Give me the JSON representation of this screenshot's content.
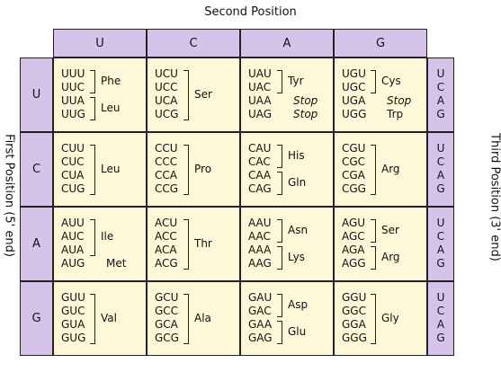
{
  "second_position_label": "Second Position",
  "first_position_label": "First Position (5' end)",
  "third_position_label": "Third Position (3' end)",
  "bases": [
    "U",
    "C",
    "A",
    "G"
  ],
  "blocks": [
    [
      {
        "codons": [
          "UUU",
          "UUC",
          "UUA",
          "UUG"
        ],
        "groups": [
          {
            "from": 0,
            "to": 1,
            "aa": "Phe"
          },
          {
            "from": 2,
            "to": 3,
            "aa": "Leu"
          }
        ]
      },
      {
        "codons": [
          "UCU",
          "UCC",
          "UCA",
          "UCG"
        ],
        "groups": [
          {
            "from": 0,
            "to": 3,
            "aa": "Ser"
          }
        ]
      },
      {
        "codons": [
          "UAU",
          "UAC",
          "UAA",
          "UAG"
        ],
        "groups": [
          {
            "from": 0,
            "to": 1,
            "aa": "Tyr"
          },
          {
            "from": 2,
            "to": 2,
            "aa": "Stop",
            "stop": true,
            "plain": true
          },
          {
            "from": 3,
            "to": 3,
            "aa": "Stop",
            "stop": true,
            "plain": true
          }
        ]
      },
      {
        "codons": [
          "UGU",
          "UGC",
          "UGA",
          "UGG"
        ],
        "groups": [
          {
            "from": 0,
            "to": 1,
            "aa": "Cys"
          },
          {
            "from": 2,
            "to": 2,
            "aa": "Stop",
            "stop": true,
            "plain": true
          },
          {
            "from": 3,
            "to": 3,
            "aa": "Trp",
            "plain": true
          }
        ]
      }
    ],
    [
      {
        "codons": [
          "CUU",
          "CUC",
          "CUA",
          "CUG"
        ],
        "groups": [
          {
            "from": 0,
            "to": 3,
            "aa": "Leu"
          }
        ]
      },
      {
        "codons": [
          "CCU",
          "CCC",
          "CCA",
          "CCG"
        ],
        "groups": [
          {
            "from": 0,
            "to": 3,
            "aa": "Pro"
          }
        ]
      },
      {
        "codons": [
          "CAU",
          "CAC",
          "CAA",
          "CAG"
        ],
        "groups": [
          {
            "from": 0,
            "to": 1,
            "aa": "His"
          },
          {
            "from": 2,
            "to": 3,
            "aa": "Gln"
          }
        ]
      },
      {
        "codons": [
          "CGU",
          "CGC",
          "CGA",
          "CGG"
        ],
        "groups": [
          {
            "from": 0,
            "to": 3,
            "aa": "Arg"
          }
        ]
      }
    ],
    [
      {
        "codons": [
          "AUU",
          "AUC",
          "AUA",
          "AUG"
        ],
        "groups": [
          {
            "from": 0,
            "to": 2,
            "aa": "Ile"
          },
          {
            "from": 3,
            "to": 3,
            "aa": "Met",
            "plain": true
          }
        ]
      },
      {
        "codons": [
          "ACU",
          "ACC",
          "ACA",
          "ACG"
        ],
        "groups": [
          {
            "from": 0,
            "to": 3,
            "aa": "Thr"
          }
        ]
      },
      {
        "codons": [
          "AAU",
          "AAC",
          "AAA",
          "AAG"
        ],
        "groups": [
          {
            "from": 0,
            "to": 1,
            "aa": "Asn"
          },
          {
            "from": 2,
            "to": 3,
            "aa": "Lys"
          }
        ]
      },
      {
        "codons": [
          "AGU",
          "AGC",
          "AGA",
          "AGG"
        ],
        "groups": [
          {
            "from": 0,
            "to": 1,
            "aa": "Ser"
          },
          {
            "from": 2,
            "to": 3,
            "aa": "Arg"
          }
        ]
      }
    ],
    [
      {
        "codons": [
          "GUU",
          "GUC",
          "GUA",
          "GUG"
        ],
        "groups": [
          {
            "from": 0,
            "to": 3,
            "aa": "Val"
          }
        ]
      },
      {
        "codons": [
          "GCU",
          "GCC",
          "GCA",
          "GCG"
        ],
        "groups": [
          {
            "from": 0,
            "to": 3,
            "aa": "Ala"
          }
        ]
      },
      {
        "codons": [
          "GAU",
          "GAC",
          "GAA",
          "GAG"
        ],
        "groups": [
          {
            "from": 0,
            "to": 1,
            "aa": "Asp"
          },
          {
            "from": 2,
            "to": 3,
            "aa": "Glu"
          }
        ]
      },
      {
        "codons": [
          "GGU",
          "GGC",
          "GGA",
          "GGG"
        ],
        "groups": [
          {
            "from": 0,
            "to": 3,
            "aa": "Gly"
          }
        ]
      }
    ]
  ]
}
